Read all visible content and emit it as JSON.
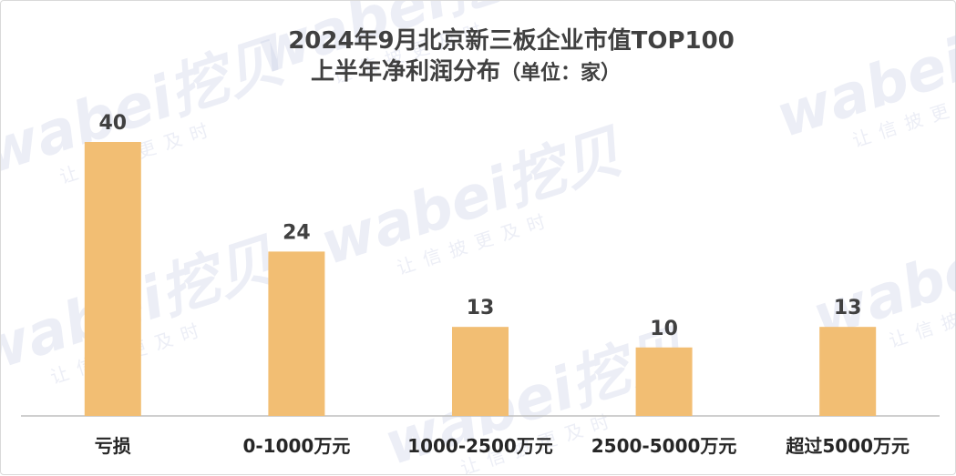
{
  "chart_data": {
    "type": "bar",
    "title_line1": "2024年9月北京新三板企业市值TOP100",
    "title_line2": "上半年净利润分布",
    "title_unit": "（单位：家）",
    "categories": [
      "亏损",
      "0-1000万元",
      "1000-2500万元",
      "2500-5000万元",
      "超过5000万元"
    ],
    "values": [
      40,
      24,
      13,
      10,
      13
    ],
    "ylim": [
      0,
      40
    ],
    "bar_color": "#F2BE73",
    "grid": false,
    "legend": "none"
  },
  "watermark": {
    "logo_text": "wabei挖贝",
    "slogan": "让信披更及时"
  }
}
